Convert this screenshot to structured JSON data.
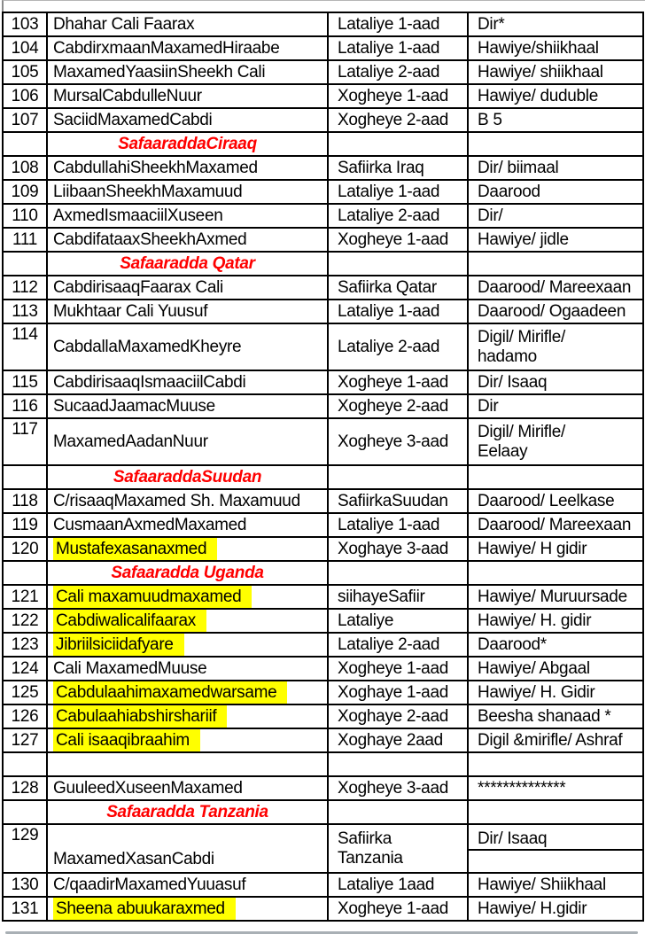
{
  "colors": {
    "section_header_red": "#fe0000",
    "highlight_yellow": "#ffff00",
    "table_border": "#000000",
    "page_divider_grey": "#a9b0b5"
  },
  "table": {
    "rows": [
      {
        "type": "strip"
      },
      {
        "type": "data",
        "num": "103",
        "name": "Dhahar Cali Faarax",
        "position": "Lataliye 1-aad",
        "clan": "Dir*",
        "highlight": false
      },
      {
        "type": "data",
        "num": "104",
        "name": "CabdirxmaanMaxamedHiraabe",
        "position": "Lataliye 1-aad",
        "clan": "Hawiye/shiikhaal",
        "highlight": false
      },
      {
        "type": "data",
        "num": "105",
        "name": "MaxamedYaasiinSheekh Cali",
        "position": "Lataliye 2-aad",
        "clan": "Hawiye/ shiikhaal",
        "highlight": false
      },
      {
        "type": "data",
        "num": "106",
        "name": "MursalCabdulleNuur",
        "position": "Xogheye 1-aad",
        "clan": "Hawiye/ duduble",
        "highlight": false
      },
      {
        "type": "data",
        "num": "107",
        "name": "SaciidMaxamedCabdi",
        "position": "Xogheye 2-aad",
        "clan": "B 5",
        "highlight": false
      },
      {
        "type": "section",
        "title": "SafaaraddaCiraaq"
      },
      {
        "type": "data",
        "num": "108",
        "name": "CabdullahiSheekhMaxamed",
        "position": "Safiirka Iraq",
        "clan": "Dir/ biimaal",
        "highlight": false
      },
      {
        "type": "data",
        "num": "109",
        "name": "LiibaanSheekhMaxamuud",
        "position": "Lataliye 1-aad",
        "clan": "Daarood",
        "highlight": false
      },
      {
        "type": "data",
        "num": "110",
        "name": "AxmedIsmaaciilXuseen",
        "position": "Lataliye 2-aad",
        "clan": "Dir/",
        "highlight": false
      },
      {
        "type": "data",
        "num": "111",
        "name": "CabdifataaxSheekhAxmed",
        "position": "Xogheye 1-aad",
        "clan": "Hawiye/ jidle",
        "highlight": false
      },
      {
        "type": "section",
        "title": "Safaaradda Qatar"
      },
      {
        "type": "data",
        "num": "112",
        "name": "CabdirisaaqFaarax Cali",
        "position": "Safiirka Qatar",
        "clan": "Daarood/ Mareexaan",
        "highlight": false
      },
      {
        "type": "data",
        "num": "113",
        "name": "Mukhtaar Cali Yuusuf",
        "position": "Lataliye 1-aad",
        "clan": "Daarood/ Ogaadeen",
        "highlight": false
      },
      {
        "type": "data",
        "num": "114",
        "name": "CabdallaMaxamedKheyre",
        "position": "Lataliye 2-aad",
        "clan": "Digil/ Mirifle/\nhadamo",
        "highlight": false,
        "tall": true
      },
      {
        "type": "data",
        "num": "115",
        "name": "CabdirisaaqIsmaaciilCabdi",
        "position": "Xogheye 1-aad",
        "clan": "Dir/ Isaaq",
        "highlight": false
      },
      {
        "type": "data",
        "num": "116",
        "name": "SucaadJaamacMuuse",
        "position": "Xogheye 2-aad",
        "clan": "Dir",
        "highlight": false
      },
      {
        "type": "data",
        "num": "117",
        "name": "MaxamedAadanNuur",
        "position": "Xogheye 3-aad",
        "clan": "Digil/ Mirifle/\nEelaay",
        "highlight": false,
        "tall": true
      },
      {
        "type": "section",
        "title": "SafaaraddaSuudan"
      },
      {
        "type": "data",
        "num": "118",
        "name": "C/risaaqMaxamed Sh. Maxamuud",
        "position": "SafiirkaSuudan",
        "clan": "Daarood/ Leelkase",
        "highlight": false
      },
      {
        "type": "data",
        "num": "119",
        "name": "CusmaanAxmedMaxamed",
        "position": "Lataliye 1-aad",
        "clan": "Daarood/ Mareexaan",
        "highlight": false
      },
      {
        "type": "data",
        "num": "120",
        "name": "Mustafexasanaxmed",
        "position": "Xoghaye 3-aad",
        "clan": "Hawiye/ H gidir",
        "highlight": true
      },
      {
        "type": "section",
        "title": "Safaaradda Uganda"
      },
      {
        "type": "data",
        "num": "121",
        "name": "Cali maxamuudmaxamed",
        "position": "siihayeSafiir",
        "clan": "Hawiye/ Muruursade",
        "highlight": true
      },
      {
        "type": "data",
        "num": "122",
        "name": "Cabdiwalicalifaarax",
        "position": "Lataliye",
        "clan": "Hawiye/ H. gidir",
        "highlight": true
      },
      {
        "type": "data",
        "num": "123",
        "name": "Jibriilsiciidafyare",
        "position": "Lataliye 2-aad",
        "clan": "Daarood*",
        "highlight": true
      },
      {
        "type": "data",
        "num": "124",
        "name": "Cali MaxamedMuuse",
        "position": "Xogheye 1-aad",
        "clan": "Hawiye/ Abgaal",
        "highlight": false
      },
      {
        "type": "data",
        "num": "125",
        "name": "Cabdulaahimaxamedwarsame",
        "position": "Xoghaye 1-aad",
        "clan": "Hawiye/ H. Gidir",
        "highlight": true
      },
      {
        "type": "data",
        "num": "126",
        "name": "Cabulaahiabshirshariif",
        "position": "Xoghaye 2-aad",
        "clan": "Beesha shanaad *",
        "highlight": true
      },
      {
        "type": "data",
        "num": "127",
        "name": "Cali isaaqibraahim",
        "position": "Xoghaye 2aad",
        "clan": "Digil &mirifle/ Ashraf",
        "highlight": true
      },
      {
        "type": "empty"
      },
      {
        "type": "data",
        "num": "128",
        "name": "GuuleedXuseenMaxamed",
        "position": "Xogheye 3-aad",
        "clan": "**************",
        "highlight": false
      },
      {
        "type": "section",
        "title": "Safaaradda Tanzania"
      },
      {
        "type": "data",
        "num": "129",
        "name": "MaxamedXasanCabdi",
        "position": "Safiirka\nTanzania",
        "clan": "Dir/ Isaaq",
        "highlight": false,
        "tall": true,
        "name_bottom": true,
        "clan_split": true
      },
      {
        "type": "data",
        "num": "130",
        "name": "C/qaadirMaxamedYuuasuf",
        "position": "Lataliye 1aad",
        "clan": "Hawiye/ Shiikhaal",
        "highlight": false
      },
      {
        "type": "data",
        "num": "131",
        "name": "Sheena abuukaraxmed",
        "position": "Xogheye 1-aad",
        "clan": "Hawiye/ H.gidir",
        "highlight": true
      }
    ]
  }
}
